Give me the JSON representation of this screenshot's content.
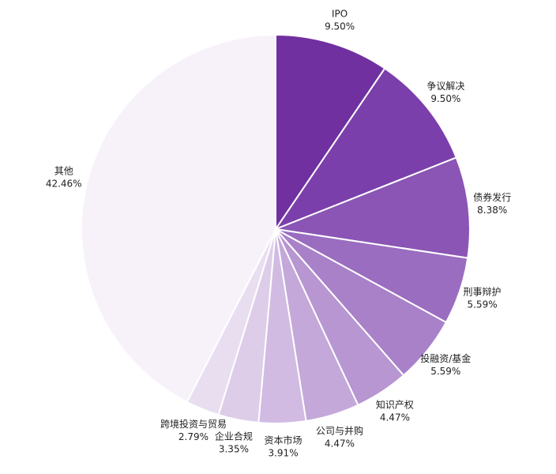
{
  "chart_data": {
    "type": "pie",
    "categories": [
      "IPO",
      "争议解决",
      "债券发行",
      "刑事辩护",
      "投融资/基金",
      "知识产权",
      "公司与并购",
      "资本市场",
      "企业合规",
      "跨境投资与贸易",
      "其他"
    ],
    "values": [
      9.5,
      9.5,
      8.38,
      5.59,
      5.59,
      4.47,
      4.47,
      3.91,
      3.35,
      2.79,
      42.46
    ],
    "value_labels": [
      "9.50%",
      "9.50%",
      "8.38%",
      "5.59%",
      "5.59%",
      "4.47%",
      "4.47%",
      "3.91%",
      "3.35%",
      "2.79%",
      "42.46%"
    ],
    "colors": [
      "#7030a0",
      "#7b3fab",
      "#8a55b5",
      "#9a6dc0",
      "#a981c9",
      "#b796d2",
      "#c4a8da",
      "#d1bbe2",
      "#ddcde9",
      "#e8def0",
      "#f7f2fa"
    ]
  }
}
